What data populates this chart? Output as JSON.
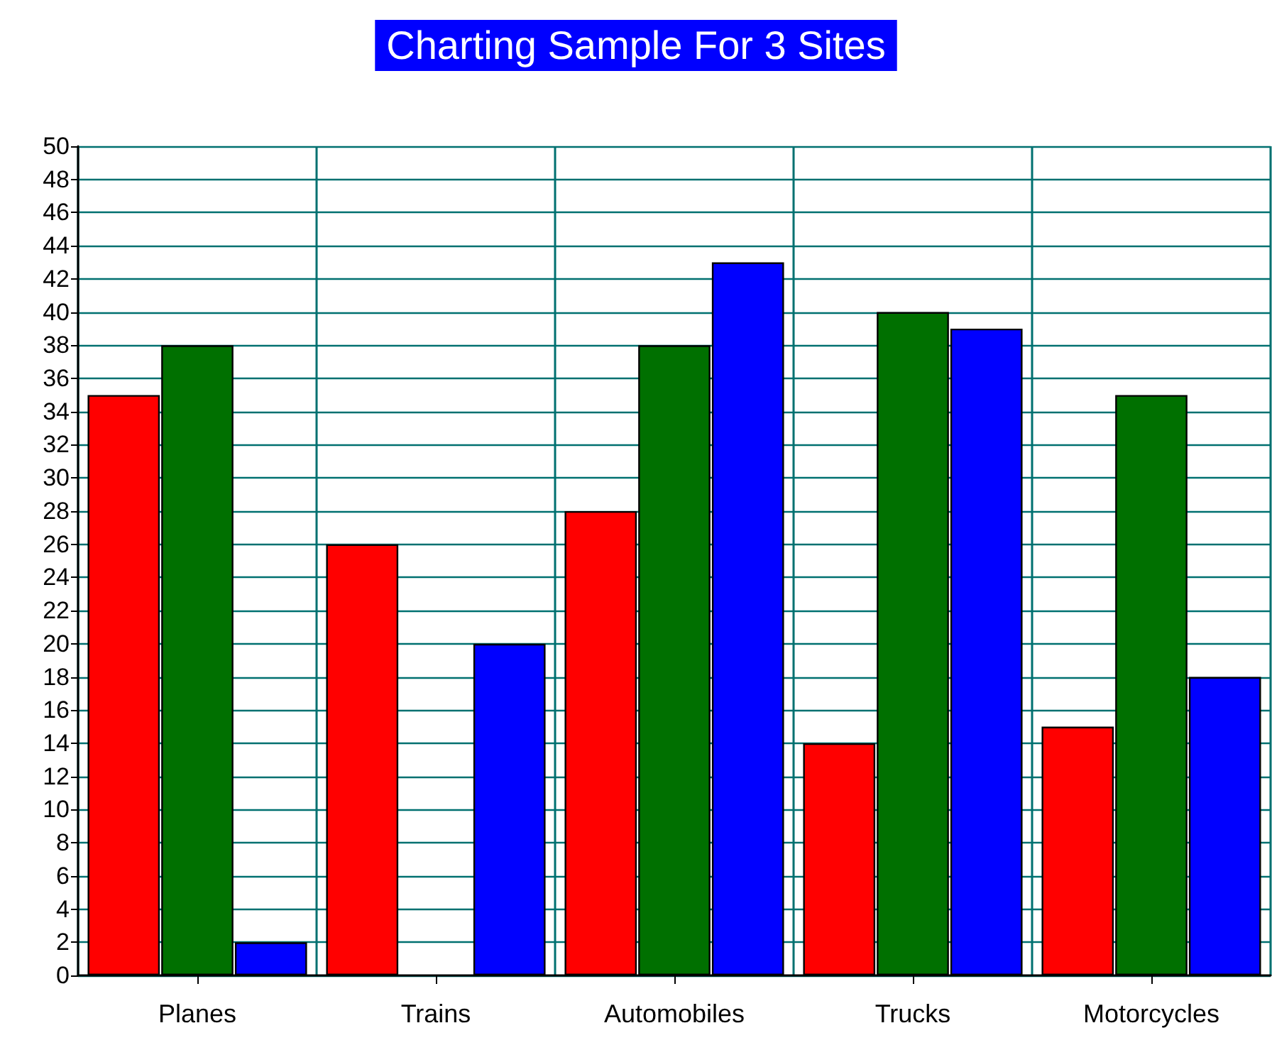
{
  "chart_data": {
    "type": "bar",
    "title": "Charting Sample For 3 Sites",
    "categories": [
      "Planes",
      "Trains",
      "Automobiles",
      "Trucks",
      "Motorcycles"
    ],
    "series": [
      {
        "color": "#ff0000",
        "values": [
          35,
          26,
          28,
          14,
          15
        ]
      },
      {
        "color": "#007000",
        "values": [
          38,
          null,
          38,
          40,
          35
        ]
      },
      {
        "color": "#0000ff",
        "values": [
          2,
          20,
          43,
          39,
          18
        ]
      }
    ],
    "ylim": [
      0,
      50
    ],
    "yticks": [
      0,
      2,
      4,
      6,
      8,
      10,
      12,
      14,
      16,
      18,
      20,
      22,
      24,
      26,
      28,
      30,
      32,
      34,
      36,
      38,
      40,
      42,
      44,
      46,
      48,
      50
    ],
    "grid": true
  }
}
